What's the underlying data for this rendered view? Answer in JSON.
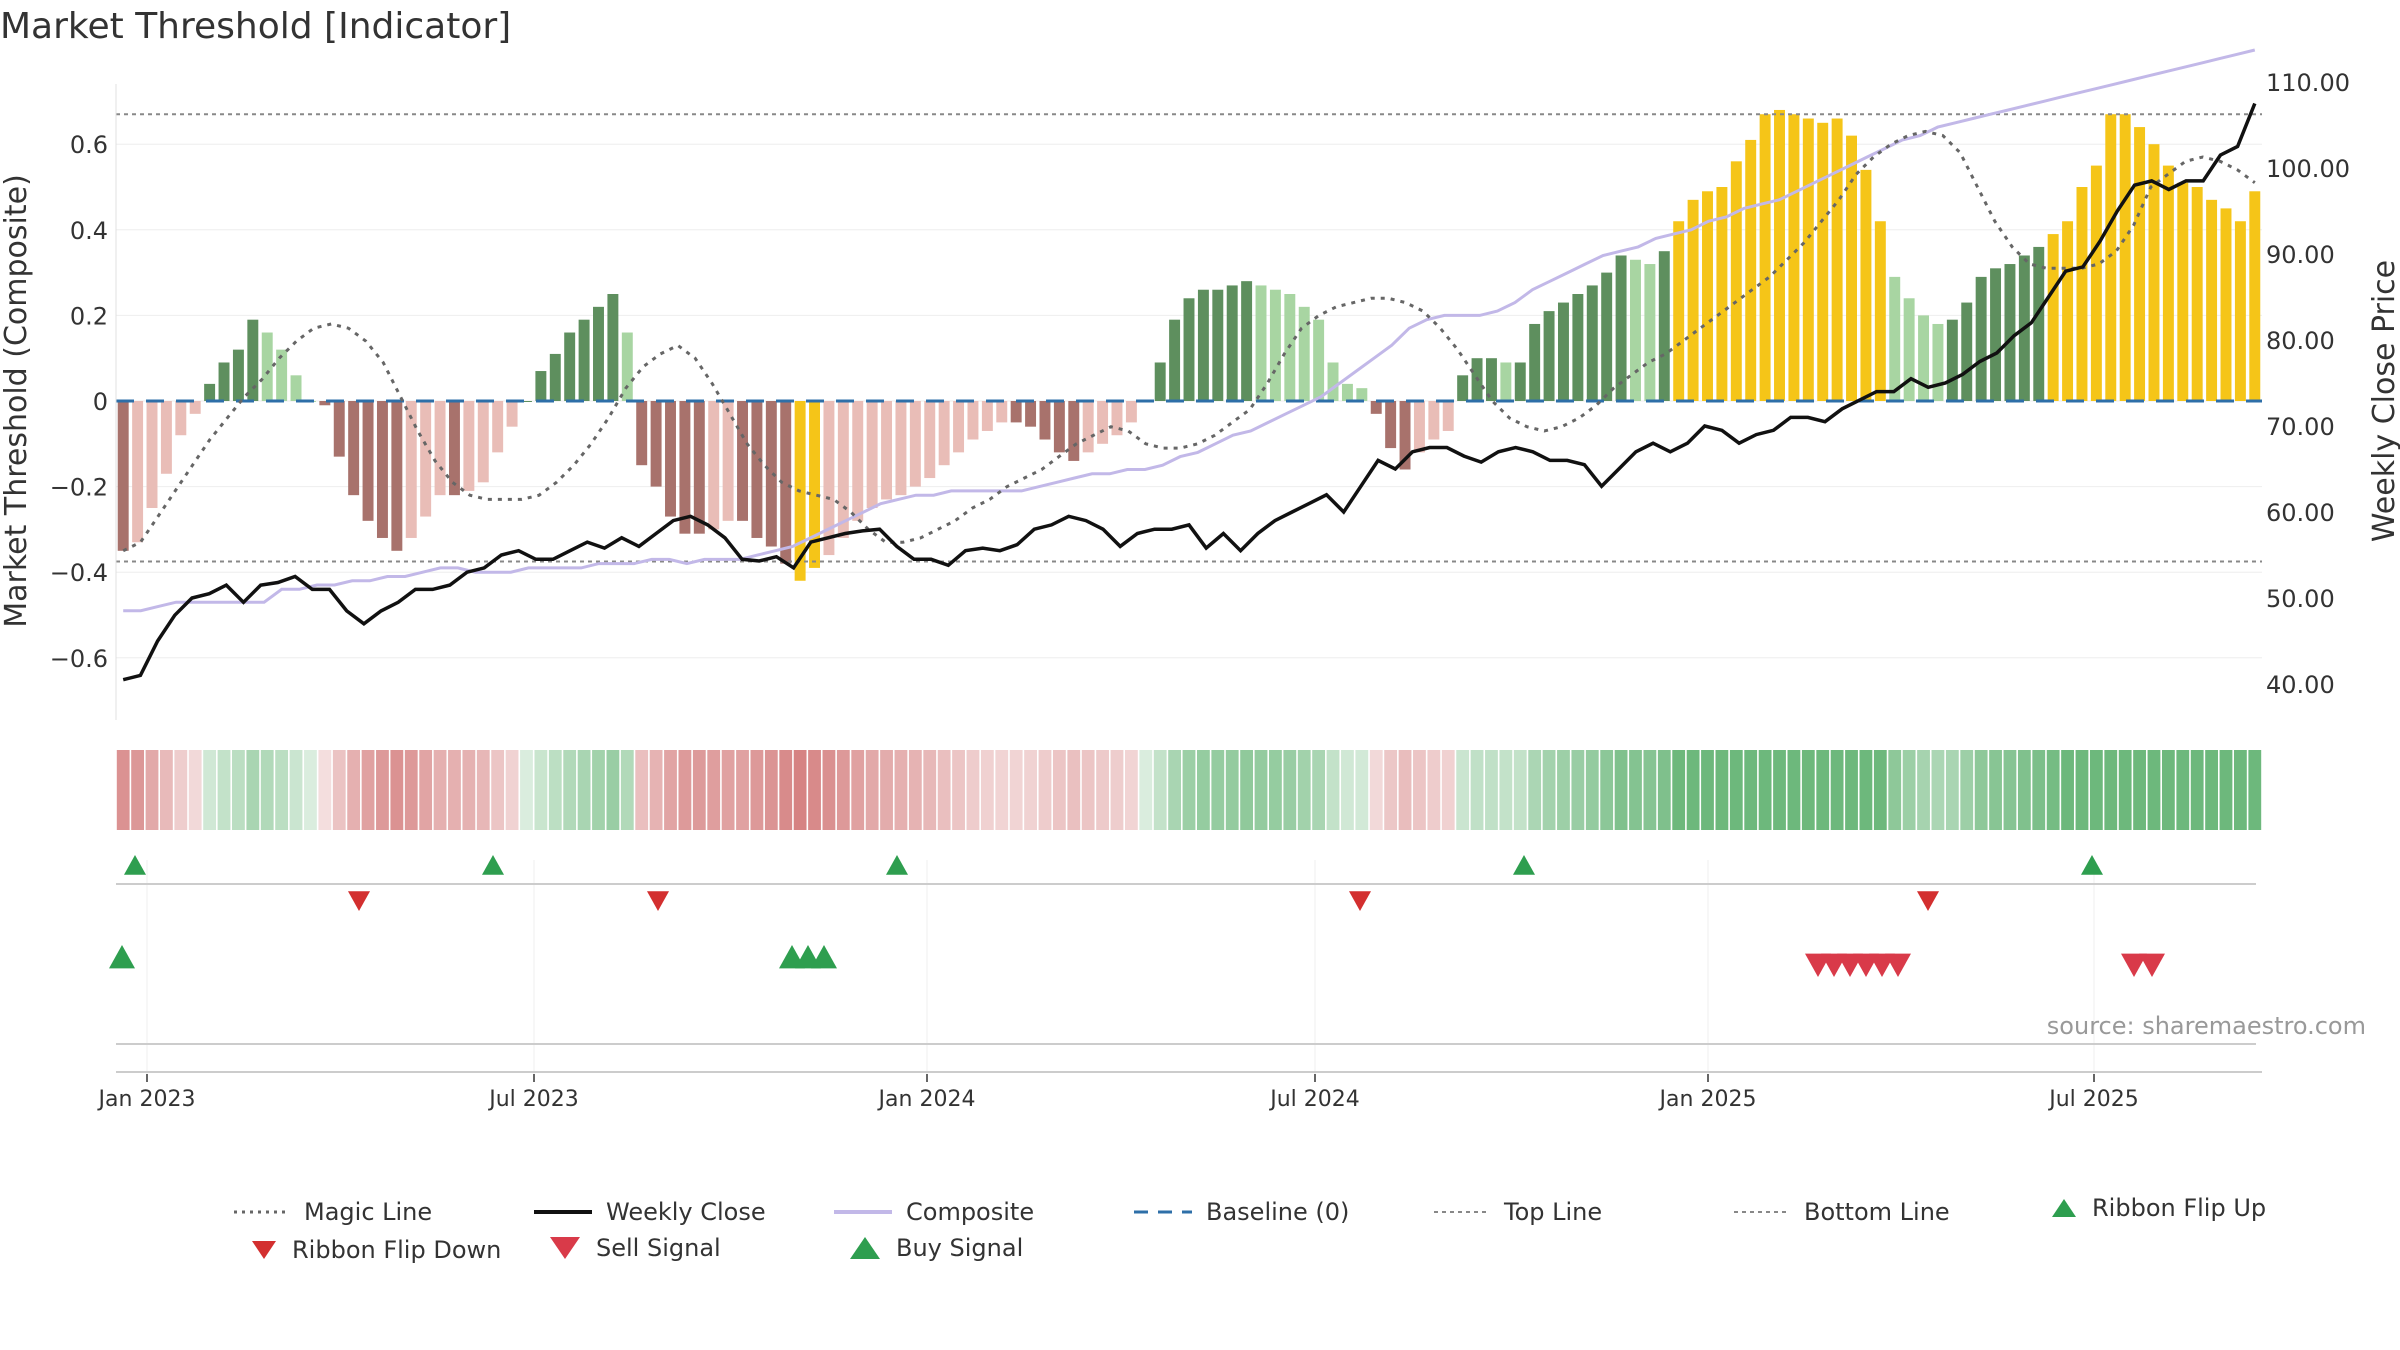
{
  "title": "Market Threshold [Indicator]",
  "source_note": "source: sharemaestro.com",
  "colors": {
    "bar_up_strong": "#5e8f5e",
    "bar_up_light": "#a8d5a2",
    "bar_down_strong": "#a8726c",
    "bar_down_light": "#e9bdb7",
    "bar_extreme": "#f5c518",
    "weekly_close": "#111111",
    "composite": "#c2b8e8",
    "magic": "#666666",
    "baseline": "#2e6fa8",
    "buy": "#2e9e4f",
    "sell": "#d93a49"
  },
  "chart_data": {
    "type": "bar",
    "title": "Market Threshold [Indicator]",
    "left_axis": {
      "label": "Market Threshold (Composite)",
      "ticks": [
        "−0.6",
        "−0.4",
        "−0.2",
        "0",
        "0.2",
        "0.4",
        "0.6"
      ],
      "ylim": [
        -0.72,
        0.74
      ]
    },
    "right_axis": {
      "label": "Weekly Close Price",
      "ticks": [
        "40.00",
        "50.00",
        "60.00",
        "70.00",
        "80.00",
        "90.00",
        "100.00",
        "110.00"
      ],
      "ylim": [
        36.7,
        111.0
      ]
    },
    "x_ticks": [
      "Jan 2023",
      "Jul 2023",
      "Jan 2024",
      "Jul 2024",
      "Jan 2025",
      "Jul 2025"
    ],
    "top_line": 0.67,
    "bottom_line": -0.375,
    "series": [
      {
        "name": "Magic Line",
        "values": [
          -0.35,
          -0.33,
          -0.27,
          -0.21,
          -0.15,
          -0.09,
          -0.04,
          0.01,
          0.05,
          0.1,
          0.14,
          0.17,
          0.18,
          0.17,
          0.14,
          0.09,
          0.01,
          -0.07,
          -0.14,
          -0.19,
          -0.22,
          -0.23,
          -0.23,
          -0.23,
          -0.22,
          -0.19,
          -0.15,
          -0.1,
          -0.04,
          0.03,
          0.08,
          0.11,
          0.13,
          0.1,
          0.04,
          -0.03,
          -0.1,
          -0.15,
          -0.19,
          -0.21,
          -0.22,
          -0.23,
          -0.26,
          -0.3,
          -0.33,
          -0.33,
          -0.32,
          -0.3,
          -0.28,
          -0.25,
          -0.23,
          -0.2,
          -0.18,
          -0.16,
          -0.13,
          -0.1,
          -0.08,
          -0.06,
          -0.07,
          -0.1,
          -0.11,
          -0.11,
          -0.1,
          -0.08,
          -0.05,
          -0.02,
          0.04,
          0.11,
          0.17,
          0.2,
          0.22,
          0.23,
          0.24,
          0.24,
          0.23,
          0.21,
          0.17,
          0.12,
          0.06,
          0.0,
          -0.04,
          -0.06,
          -0.07,
          -0.06,
          -0.04,
          -0.01,
          0.03,
          0.06,
          0.09,
          0.11,
          0.14,
          0.17,
          0.2,
          0.23,
          0.26,
          0.29,
          0.33,
          0.37,
          0.42,
          0.47,
          0.53,
          0.57,
          0.6,
          0.62,
          0.63,
          0.62,
          0.58,
          0.5,
          0.42,
          0.36,
          0.32,
          0.31,
          0.31,
          0.31,
          0.32,
          0.35,
          0.41,
          0.5,
          0.53,
          0.56,
          0.57,
          0.56,
          0.54,
          0.51
        ],
        "color": "#666666"
      },
      {
        "name": "Weekly Close",
        "values": [
          40.5,
          41.0,
          45.0,
          48.0,
          50.0,
          50.5,
          51.5,
          49.5,
          51.5,
          51.8,
          52.5,
          51.0,
          51.0,
          48.5,
          47.0,
          48.5,
          49.5,
          51.0,
          51.0,
          51.5,
          53.0,
          53.5,
          55.0,
          55.5,
          54.5,
          54.5,
          55.5,
          56.5,
          55.8,
          57.0,
          56.0,
          57.5,
          59.0,
          59.5,
          58.5,
          57.0,
          54.5,
          54.3,
          54.8,
          53.5,
          56.5,
          57.0,
          57.5,
          57.8,
          58.0,
          56.0,
          54.5,
          54.5,
          53.8,
          55.5,
          55.8,
          55.5,
          56.2,
          58.0,
          58.5,
          59.5,
          59.0,
          58.0,
          56.0,
          57.5,
          58.0,
          58.0,
          58.5,
          55.8,
          57.5,
          55.5,
          57.5,
          59.0,
          60.0,
          61.0,
          62.0,
          60.0,
          63.0,
          66.0,
          65.0,
          67.0,
          67.5,
          67.5,
          66.5,
          65.8,
          67.0,
          67.5,
          67.0,
          66.0,
          66.0,
          65.5,
          63.0,
          65.0,
          67.0,
          68.0,
          67.0,
          68.0,
          70.0,
          69.5,
          68.0,
          69.0,
          69.5,
          71.0,
          71.0,
          70.5,
          72.0,
          73.0,
          74.0,
          74.0,
          75.5,
          74.5,
          75.0,
          76.0,
          77.5,
          78.5,
          80.5,
          82.0,
          85.0,
          88.0,
          88.5,
          91.5,
          95.0,
          98.0,
          98.5,
          97.5,
          98.5,
          98.5,
          101.5,
          102.5,
          107.5
        ],
        "color": "#111111"
      },
      {
        "name": "Composite",
        "values": [
          -0.49,
          -0.49,
          -0.48,
          -0.47,
          -0.47,
          -0.47,
          -0.47,
          -0.47,
          -0.47,
          -0.44,
          -0.44,
          -0.43,
          -0.43,
          -0.42,
          -0.42,
          -0.41,
          -0.41,
          -0.4,
          -0.39,
          -0.39,
          -0.4,
          -0.4,
          -0.4,
          -0.39,
          -0.39,
          -0.39,
          -0.39,
          -0.38,
          -0.38,
          -0.38,
          -0.37,
          -0.37,
          -0.38,
          -0.37,
          -0.37,
          -0.37,
          -0.36,
          -0.35,
          -0.34,
          -0.32,
          -0.3,
          -0.28,
          -0.26,
          -0.24,
          -0.23,
          -0.22,
          -0.22,
          -0.21,
          -0.21,
          -0.21,
          -0.21,
          -0.21,
          -0.2,
          -0.19,
          -0.18,
          -0.17,
          -0.17,
          -0.16,
          -0.16,
          -0.15,
          -0.13,
          -0.12,
          -0.1,
          -0.08,
          -0.07,
          -0.05,
          -0.03,
          -0.01,
          0.01,
          0.04,
          0.07,
          0.1,
          0.13,
          0.17,
          0.19,
          0.2,
          0.2,
          0.2,
          0.21,
          0.23,
          0.26,
          0.28,
          0.3,
          0.32,
          0.34,
          0.35,
          0.36,
          0.38,
          0.39,
          0.4,
          0.42,
          0.43,
          0.45,
          0.46,
          0.47,
          0.49,
          0.51,
          0.53,
          0.55,
          0.57,
          0.59,
          0.61,
          0.62,
          0.64,
          0.65,
          0.66,
          0.67,
          0.68,
          0.69,
          0.7,
          0.71,
          0.72,
          0.73,
          0.74,
          0.75,
          0.76,
          0.77,
          0.78,
          0.79,
          0.8,
          0.81,
          0.82
        ],
        "color": "#c2b8e8"
      },
      {
        "name": "Baseline (0)",
        "values": [
          0
        ],
        "color": "#2e6fa8"
      },
      {
        "name": "Top Line",
        "values": [
          0.67
        ],
        "color": "#666666"
      },
      {
        "name": "Bottom Line",
        "values": [
          -0.375
        ],
        "color": "#666666"
      }
    ],
    "composite_bars": [
      -0.35,
      -0.33,
      -0.25,
      -0.17,
      -0.08,
      -0.03,
      0.04,
      0.09,
      0.12,
      0.19,
      0.16,
      0.12,
      0.06,
      0.0,
      -0.01,
      -0.13,
      -0.22,
      -0.28,
      -0.32,
      -0.35,
      -0.32,
      -0.27,
      -0.22,
      -0.22,
      -0.21,
      -0.19,
      -0.12,
      -0.06,
      0.0,
      0.07,
      0.11,
      0.16,
      0.19,
      0.22,
      0.25,
      0.16,
      -0.15,
      -0.2,
      -0.27,
      -0.31,
      -0.31,
      -0.3,
      -0.28,
      -0.28,
      -0.32,
      -0.34,
      -0.38,
      -0.42,
      -0.39,
      -0.36,
      -0.32,
      -0.28,
      -0.25,
      -0.23,
      -0.22,
      -0.2,
      -0.18,
      -0.15,
      -0.12,
      -0.09,
      -0.07,
      -0.05,
      -0.05,
      -0.06,
      -0.09,
      -0.12,
      -0.14,
      -0.12,
      -0.1,
      -0.08,
      -0.05,
      0.0,
      0.09,
      0.19,
      0.24,
      0.26,
      0.26,
      0.27,
      0.28,
      0.27,
      0.26,
      0.25,
      0.22,
      0.19,
      0.09,
      0.04,
      0.03,
      -0.03,
      -0.11,
      -0.16,
      -0.12,
      -0.09,
      -0.07,
      0.06,
      0.1,
      0.1,
      0.09,
      0.09,
      0.18,
      0.21,
      0.23,
      0.25,
      0.27,
      0.3,
      0.34,
      0.33,
      0.32,
      0.35,
      0.42,
      0.47,
      0.49,
      0.5,
      0.56,
      0.61,
      0.67,
      0.68,
      0.67,
      0.66,
      0.65,
      0.66,
      0.62,
      0.54,
      0.42,
      0.29,
      0.24,
      0.2,
      0.18,
      0.19,
      0.23,
      0.29,
      0.31,
      0.32,
      0.34,
      0.36,
      0.39,
      0.42,
      0.5,
      0.55,
      0.67,
      0.67,
      0.64,
      0.6,
      0.55,
      0.51,
      0.5,
      0.47,
      0.45,
      0.42,
      0.49
    ],
    "ribbon_flip_up": [
      "Dec 2022",
      "Jun 2023",
      "Dec 2023",
      "Nov 2024",
      "Jul 2025"
    ],
    "ribbon_flip_down": [
      "Apr 2023",
      "Sep 2023",
      "Aug 2024",
      "Apr 2025"
    ],
    "buy_signal": [
      "Dec 2022",
      "Oct 2023",
      "Oct 2023",
      "Nov 2023"
    ],
    "sell_signal": [
      "Mar 2025",
      "Mar 2025",
      "Mar 2025",
      "Apr 2025",
      "Apr 2025",
      "Apr 2025",
      "Jul 2025",
      "Aug 2025"
    ]
  },
  "legend": [
    {
      "label": "Magic Line"
    },
    {
      "label": "Weekly Close"
    },
    {
      "label": "Composite"
    },
    {
      "label": "Baseline (0)"
    },
    {
      "label": "Top Line"
    },
    {
      "label": "Bottom Line"
    },
    {
      "label": "Ribbon Flip Up"
    },
    {
      "label": "Ribbon Flip Down"
    },
    {
      "label": "Sell Signal"
    },
    {
      "label": "Buy Signal"
    }
  ]
}
